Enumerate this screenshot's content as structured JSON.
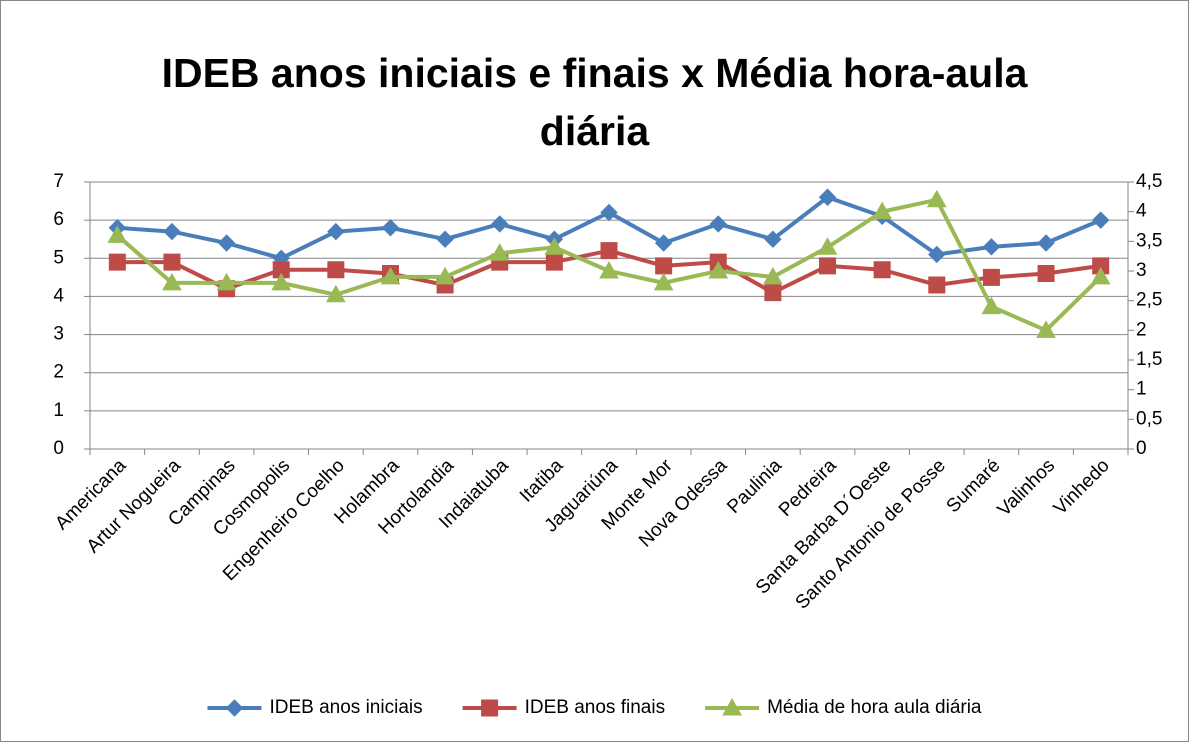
{
  "chart_data": {
    "type": "line",
    "title": "IDEB anos iniciais e finais x Média hora-aula diária",
    "categories": [
      "Americana",
      "Artur Nogueira",
      "Campinas",
      "Cosmopolis",
      "Engenheiro Coelho",
      "Holambra",
      "Hortolandia",
      "Indaiatuba",
      "Itatiba",
      "Jaguariúna",
      "Monte Mor",
      "Nova Odessa",
      "Paulinia",
      "Pedreira",
      "Santa Barba D´Oeste",
      "Santo Antonio de Posse",
      "Sumaré",
      "Valinhos",
      "Vinhedo"
    ],
    "series": [
      {
        "name": "IDEB anos iniciais",
        "color": "#4a7ebb",
        "marker": "diamond",
        "values": [
          5.8,
          5.7,
          5.4,
          5.0,
          5.7,
          5.8,
          5.5,
          5.9,
          5.5,
          6.2,
          5.4,
          5.9,
          5.5,
          6.6,
          6.1,
          5.1,
          5.3,
          5.4,
          6.0
        ]
      },
      {
        "name": "IDEB anos finais",
        "color": "#be4b48",
        "marker": "square",
        "values": [
          4.9,
          4.9,
          4.2,
          4.7,
          4.7,
          4.6,
          4.3,
          4.9,
          4.9,
          5.2,
          4.8,
          4.9,
          4.1,
          4.8,
          4.7,
          4.3,
          4.5,
          4.6,
          4.8
        ]
      },
      {
        "name": "Média de hora aula diária",
        "color": "#98b954",
        "marker": "triangle",
        "axis": "y2",
        "values": [
          3.6,
          2.8,
          2.8,
          2.8,
          2.6,
          2.9,
          2.9,
          3.3,
          3.4,
          3.0,
          2.8,
          3.0,
          2.9,
          3.4,
          4.0,
          4.2,
          2.4,
          2.0,
          2.9
        ]
      }
    ],
    "ylim": [
      0,
      7
    ],
    "yticks": [
      0,
      1,
      2,
      3,
      4,
      5,
      6,
      7
    ],
    "y2lim": [
      0,
      4.5
    ],
    "y2ticks": [
      0,
      {
        "value": 0.5,
        "label": "0,5"
      },
      1,
      {
        "value": 1.5,
        "label": "1,5"
      },
      2,
      {
        "value": 2.5,
        "label": "2,5"
      },
      3,
      {
        "value": 3.5,
        "label": "3,5"
      },
      4,
      {
        "value": 4.5,
        "label": "4,5"
      }
    ],
    "grid": true,
    "legend": "bottom"
  }
}
